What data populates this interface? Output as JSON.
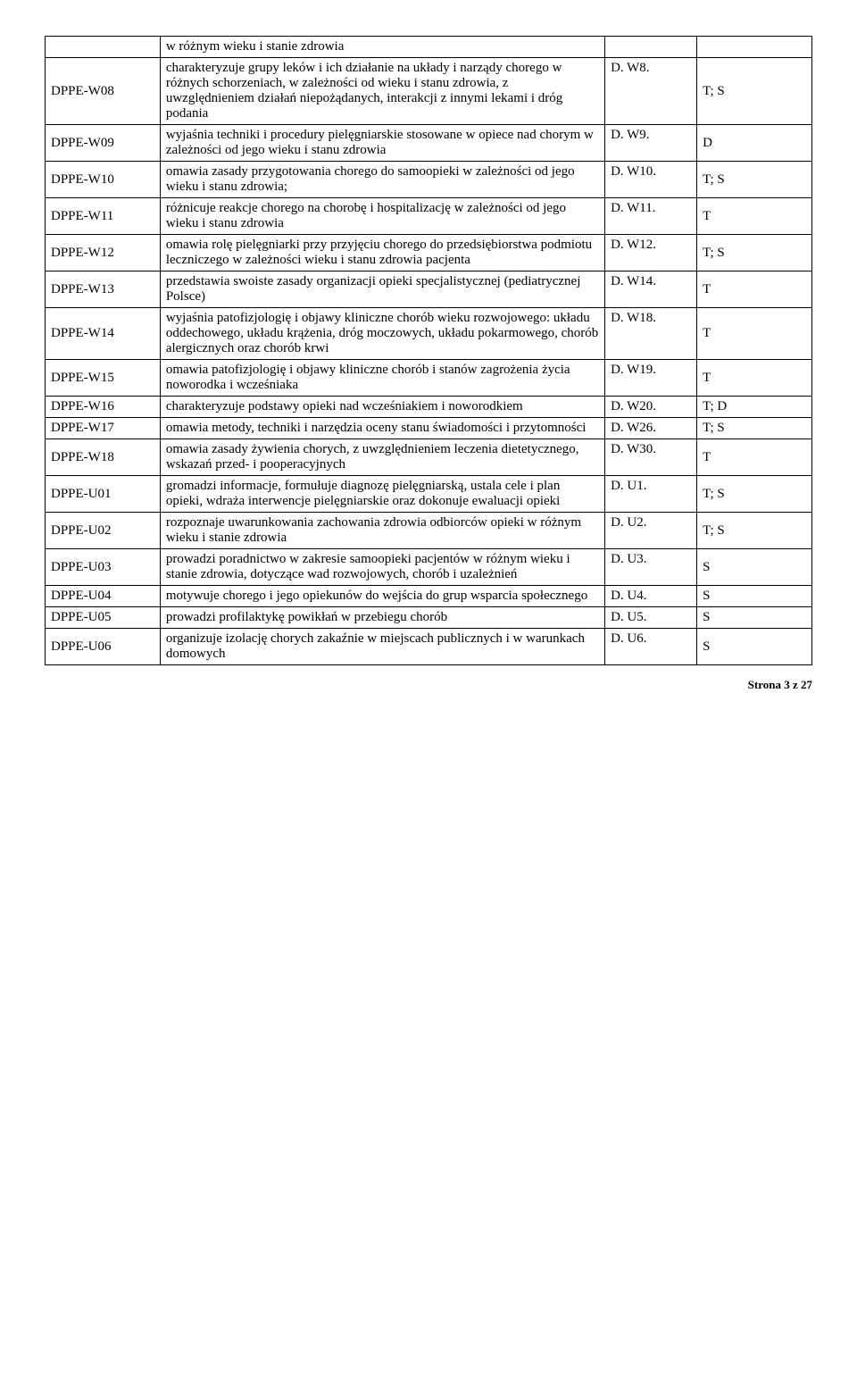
{
  "rows": [
    {
      "code_rowspan": 0,
      "code": "",
      "desc": "w różnym wieku i stanie zdrowia",
      "ref": "",
      "tag": ""
    },
    {
      "code_rowspan": 1,
      "code": "DPPE-W08",
      "desc": "charakteryzuje grupy leków i ich działanie na układy i narządy chorego w różnych schorzeniach, w zależności od wieku i stanu zdrowia, z uwzględnieniem działań niepożądanych, interakcji z innymi lekami i dróg podania",
      "ref": "D. W8.",
      "tag": "T; S"
    },
    {
      "code_rowspan": 1,
      "code": "DPPE-W09",
      "desc": "wyjaśnia techniki i procedury pielęgniarskie stosowane w opiece nad chorym w zależności od jego wieku i stanu zdrowia",
      "ref": "D. W9.",
      "tag": "D"
    },
    {
      "code_rowspan": 1,
      "code": "DPPE-W10",
      "desc": "omawia zasady przygotowania chorego do samoopieki  w zależności od jego wieku i stanu zdrowia;",
      "ref": "D. W10.",
      "tag": "T; S"
    },
    {
      "code_rowspan": 1,
      "code": "DPPE-W11",
      "desc": "różnicuje reakcje chorego na chorobę i hospitalizację w zależności od jego wieku i stanu zdrowia",
      "ref": "D. W11.",
      "tag": "T"
    },
    {
      "code_rowspan": 1,
      "code": "DPPE-W12",
      "desc": "omawia rolę pielęgniarki przy przyjęciu chorego do przedsiębiorstwa podmiotu leczniczego w zależności wieku i stanu zdrowia pacjenta",
      "ref": "D. W12.",
      "tag": "T; S"
    },
    {
      "code_rowspan": 1,
      "code": "DPPE-W13",
      "desc": "przedstawia swoiste zasady organizacji opieki specjalistycznej (pediatrycznej Polsce)",
      "ref": "D. W14.",
      "tag": "T"
    },
    {
      "code_rowspan": 1,
      "code": "DPPE-W14",
      "desc": "wyjaśnia patofizjologię i objawy kliniczne chorób wieku rozwojowego: układu oddechowego, układu krążenia, dróg moczowych, układu pokarmowego, chorób alergicznych oraz chorób krwi",
      "ref": "D. W18.",
      "tag": "T"
    },
    {
      "code_rowspan": 1,
      "code": "DPPE-W15",
      "desc": "omawia patofizjologię i objawy kliniczne chorób i stanów zagrożenia życia noworodka i wcześniaka",
      "ref": "D. W19.",
      "tag": "T"
    },
    {
      "code_rowspan": 1,
      "code": "DPPE-W16",
      "desc": "charakteryzuje podstawy opieki nad wcześniakiem i noworodkiem",
      "ref": "D. W20.",
      "tag": "T; D"
    },
    {
      "code_rowspan": 1,
      "code": "DPPE-W17",
      "desc": "omawia metody, techniki i narzędzia oceny stanu świadomości i przytomności",
      "ref": "D. W26.",
      "tag": "T; S"
    },
    {
      "code_rowspan": 1,
      "code": "DPPE-W18",
      "desc": "omawia zasady żywienia chorych, z uwzględnieniem leczenia dietetycznego, wskazań przed- i pooperacyjnych",
      "ref": "D. W30.",
      "tag": "T"
    },
    {
      "code_rowspan": 1,
      "code": "DPPE-U01",
      "desc": "gromadzi informacje, formułuje diagnozę pielęgniarską, ustala cele i plan opieki, wdraża interwencje pielęgniarskie oraz dokonuje ewaluacji opieki",
      "ref": "D. U1.",
      "tag": "T; S"
    },
    {
      "code_rowspan": 1,
      "code": "DPPE-U02",
      "desc": "rozpoznaje uwarunkowania zachowania zdrowia odbiorców opieki w różnym wieku i stanie zdrowia",
      "ref": "D. U2.",
      "tag": "T; S"
    },
    {
      "code_rowspan": 1,
      "code": "DPPE-U03",
      "desc": "prowadzi poradnictwo w zakresie samoopieki pacjentów w różnym wieku i stanie zdrowia, dotyczące wad rozwojowych, chorób i uzależnień",
      "ref": "D. U3.",
      "tag": "S"
    },
    {
      "code_rowspan": 1,
      "code": "DPPE-U04",
      "desc": "motywuje chorego i jego opiekunów do wejścia do grup wsparcia społecznego",
      "ref": "D. U4.",
      "tag": "S"
    },
    {
      "code_rowspan": 1,
      "code": "DPPE-U05",
      "desc": "prowadzi profilaktykę powikłań w przebiegu chorób",
      "ref": "D. U5.",
      "tag": "S"
    },
    {
      "code_rowspan": 1,
      "code": "DPPE-U06",
      "desc": "organizuje izolację chorych zakaźnie w miejscach publicznych i w warunkach domowych",
      "ref": "D. U6.",
      "tag": "S"
    }
  ],
  "footer": "Strona 3 z 27"
}
